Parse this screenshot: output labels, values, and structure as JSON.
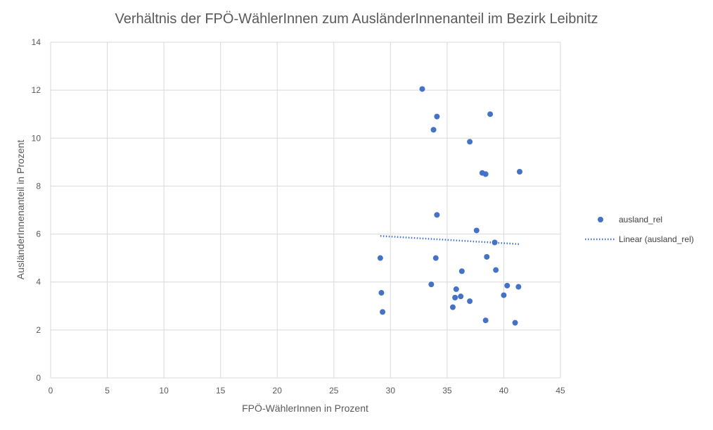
{
  "chart_data": {
    "type": "scatter",
    "title": "Verhältnis der FPÖ-WählerInnen zum AusländerInnenanteil im Bezirk Leibnitz",
    "xlabel": "FPÖ-WählerInnen in Prozent",
    "ylabel": "AusländerInnenanteil in Prozent",
    "xlim": [
      0,
      45
    ],
    "ylim": [
      0,
      14
    ],
    "x_ticks": [
      "0",
      "5",
      "10",
      "15",
      "20",
      "25",
      "30",
      "35",
      "40",
      "45"
    ],
    "y_ticks": [
      "0",
      "2",
      "4",
      "6",
      "8",
      "10",
      "12",
      "14"
    ],
    "grid": true,
    "legend_position": "right",
    "series": [
      {
        "name": "ausland_rel",
        "color": "#4472C4",
        "points": [
          [
            32.8,
            12.05
          ],
          [
            34.1,
            10.9
          ],
          [
            38.8,
            11.0
          ],
          [
            33.8,
            10.35
          ],
          [
            37.0,
            9.85
          ],
          [
            38.1,
            8.55
          ],
          [
            38.4,
            8.5
          ],
          [
            41.4,
            8.6
          ],
          [
            34.1,
            6.8
          ],
          [
            37.6,
            6.15
          ],
          [
            39.2,
            5.65
          ],
          [
            29.1,
            5.0
          ],
          [
            34.0,
            5.0
          ],
          [
            38.5,
            5.05
          ],
          [
            36.3,
            4.45
          ],
          [
            39.3,
            4.5
          ],
          [
            33.6,
            3.9
          ],
          [
            35.8,
            3.7
          ],
          [
            40.3,
            3.85
          ],
          [
            41.3,
            3.8
          ],
          [
            29.2,
            3.55
          ],
          [
            35.7,
            3.35
          ],
          [
            36.2,
            3.4
          ],
          [
            40.0,
            3.45
          ],
          [
            37.0,
            3.2
          ],
          [
            35.5,
            2.95
          ],
          [
            29.3,
            2.75
          ],
          [
            38.4,
            2.4
          ],
          [
            41.0,
            2.3
          ]
        ]
      }
    ],
    "trendline": {
      "name": "Linear (ausland_rel)",
      "type": "linear",
      "color": "#4472C4",
      "style": "dotted",
      "x_range": [
        29.1,
        41.4
      ],
      "y_values": [
        5.92,
        5.58
      ]
    }
  }
}
